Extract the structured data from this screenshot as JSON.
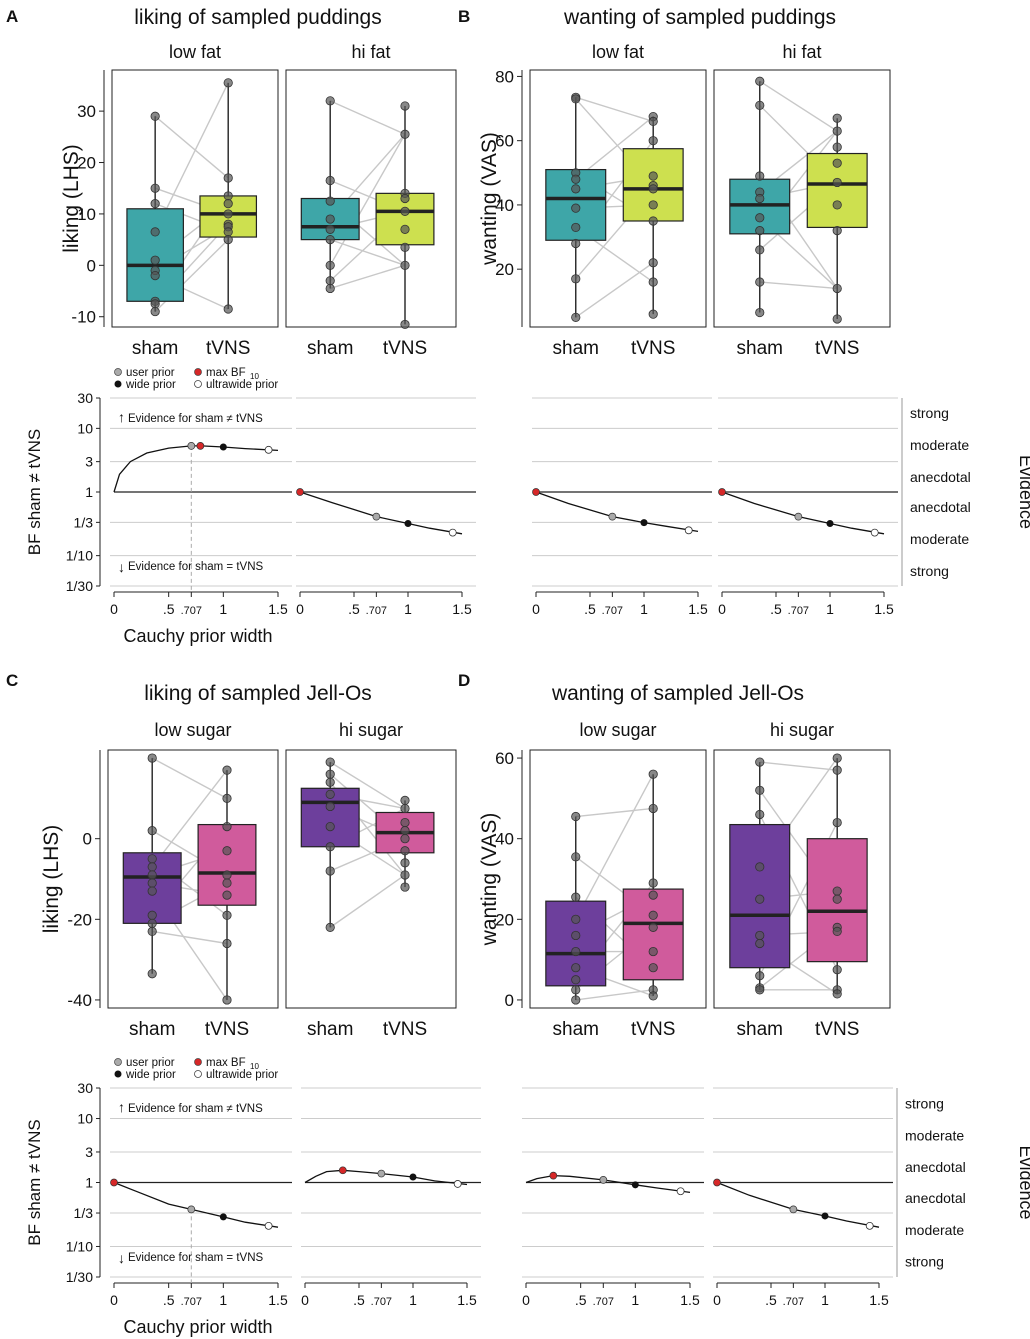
{
  "colors": {
    "teal": "#3ea6a8",
    "lime": "#cde04f",
    "purple": "#6d3f9c",
    "pink": "#d05b9c",
    "grid": "#cccccc",
    "point": "#555555",
    "max_bf": "#d62728"
  },
  "labels": {
    "sham": "sham",
    "tvns": "tVNS",
    "bf_ylabel": "BF sham ≠ tVNS",
    "evidence": "Evidence",
    "x_title": "Cauchy prior width",
    "legend_user": "user prior",
    "legend_wide": "wide prior",
    "legend_max": "max BF",
    "legend_max_sub": "10",
    "legend_ultrawide": "ultrawide prior",
    "ev_for_diff": "Evidence for sham ≠ tVNS",
    "ev_for_eq": "Evidence for sham = tVNS",
    "evidence_levels": [
      "strong",
      "moderate",
      "anecdotal",
      "anecdotal",
      "moderate",
      "strong"
    ],
    "bf_ticks": [
      "30",
      "10",
      "3",
      "1",
      "1/3",
      "1/10",
      "1/30"
    ],
    "x_ticks": [
      "0",
      ".5",
      ".707",
      "1",
      "1.5"
    ]
  },
  "chart_data": [
    {
      "panel": "A",
      "type": "boxplot",
      "title": "liking of sampled puddings",
      "ylabel": "liking (LHS)",
      "ylim": [
        -12,
        38
      ],
      "yticks": [
        -10,
        0,
        10,
        20,
        30
      ],
      "colors": [
        "teal",
        "lime"
      ],
      "facets": [
        {
          "name": "low fat",
          "boxes": [
            {
              "condition": "sham",
              "q1": -7,
              "median": 0,
              "q3": 11,
              "whisker_low": -9,
              "whisker_high": 29,
              "points": [
                29,
                15,
                12,
                6.5,
                1,
                -1,
                -2,
                -7,
                -7.5,
                -9
              ]
            },
            {
              "condition": "tVNS",
              "q1": 5.5,
              "median": 10,
              "q3": 13.5,
              "whisker_low": -8.5,
              "whisker_high": 35.5,
              "points": [
                35.5,
                17,
                13.5,
                12,
                10,
                8,
                7.5,
                6.5,
                5,
                -8.5
              ]
            }
          ]
        },
        {
          "name": "hi fat",
          "boxes": [
            {
              "condition": "sham",
              "q1": 5,
              "median": 7.5,
              "q3": 13,
              "whisker_low": -4.5,
              "whisker_high": 32,
              "points": [
                32,
                16.5,
                12.5,
                9,
                7,
                5,
                0,
                -3,
                -4.5
              ]
            },
            {
              "condition": "tVNS",
              "q1": 4,
              "median": 10.5,
              "q3": 14,
              "whisker_low": -11.5,
              "whisker_high": 31,
              "points": [
                31,
                25.5,
                14,
                13,
                10.5,
                7,
                3.5,
                0,
                -11.5
              ]
            }
          ]
        }
      ]
    },
    {
      "panel": "B",
      "type": "boxplot",
      "title": "wanting of sampled puddings",
      "ylabel": "wanting (VAS)",
      "ylim": [
        2,
        82
      ],
      "yticks": [
        20,
        40,
        60,
        80
      ],
      "colors": [
        "teal",
        "lime"
      ],
      "facets": [
        {
          "name": "low fat",
          "boxes": [
            {
              "condition": "sham",
              "q1": 29,
              "median": 42,
              "q3": 51,
              "whisker_low": 5,
              "whisker_high": 73.5,
              "points": [
                73.5,
                73,
                50,
                48,
                45,
                39,
                33,
                28,
                17,
                5
              ]
            },
            {
              "condition": "tVNS",
              "q1": 35,
              "median": 45,
              "q3": 57.5,
              "whisker_low": 6,
              "whisker_high": 67.5,
              "points": [
                67.5,
                66,
                60,
                49,
                46,
                45,
                40,
                35,
                22,
                16,
                6
              ]
            }
          ]
        },
        {
          "name": "hi fat",
          "boxes": [
            {
              "condition": "sham",
              "q1": 31,
              "median": 40,
              "q3": 48,
              "whisker_low": 6.5,
              "whisker_high": 78.5,
              "points": [
                78.5,
                71,
                49,
                44,
                42,
                36,
                32,
                26,
                16,
                6.5
              ]
            },
            {
              "condition": "tVNS",
              "q1": 33,
              "median": 46.5,
              "q3": 56,
              "whisker_low": 4.5,
              "whisker_high": 67,
              "points": [
                67,
                63,
                58,
                53,
                47,
                40,
                32,
                14,
                4.5
              ]
            }
          ]
        }
      ]
    },
    {
      "panel": "C",
      "type": "boxplot",
      "title": "liking of sampled Jell-Os",
      "ylabel": "liking (LHS)",
      "ylim": [
        -42,
        22
      ],
      "yticks": [
        -40,
        -20,
        0
      ],
      "ytick_labels": [
        "-40",
        "-20",
        "0"
      ],
      "colors": [
        "purple",
        "pink"
      ],
      "facets": [
        {
          "name": "low sugar",
          "boxes": [
            {
              "condition": "sham",
              "q1": -21,
              "median": -9.5,
              "q3": -3.5,
              "whisker_low": -33.5,
              "whisker_high": 20,
              "points": [
                20,
                2,
                -5,
                -7,
                -9,
                -11,
                -13,
                -19,
                -21,
                -23,
                -33.5
              ]
            },
            {
              "condition": "tVNS",
              "q1": -16.5,
              "median": -8.5,
              "q3": 3.5,
              "whisker_low": -40,
              "whisker_high": 17,
              "points": [
                17,
                10,
                3,
                -3,
                -9,
                -11,
                -14,
                -19,
                -26,
                -40
              ]
            }
          ]
        },
        {
          "name": "hi sugar",
          "boxes": [
            {
              "condition": "sham",
              "q1": -2,
              "median": 9,
              "q3": 12.5,
              "whisker_low": -22,
              "whisker_high": 19,
              "points": [
                19,
                16,
                14,
                11,
                8,
                3,
                -2,
                -8,
                -22
              ]
            },
            {
              "condition": "tVNS",
              "q1": -3.5,
              "median": 1.5,
              "q3": 6.5,
              "whisker_low": -12,
              "whisker_high": 9.5,
              "points": [
                9.5,
                7.5,
                4,
                2,
                0,
                -3,
                -6,
                -9,
                -12
              ]
            }
          ]
        }
      ]
    },
    {
      "panel": "D",
      "type": "boxplot",
      "title": "wanting of sampled Jell-Os",
      "ylabel": "wanting (VAS)",
      "ylim": [
        -2,
        62
      ],
      "yticks": [
        0,
        20,
        40,
        60
      ],
      "colors": [
        "purple",
        "pink"
      ],
      "facets": [
        {
          "name": "low sugar",
          "boxes": [
            {
              "condition": "sham",
              "q1": 3.5,
              "median": 11.5,
              "q3": 24.5,
              "whisker_low": 0,
              "whisker_high": 45.5,
              "points": [
                45.5,
                35.5,
                25.5,
                20,
                16,
                12,
                8,
                5,
                2.5,
                0
              ]
            },
            {
              "condition": "tVNS",
              "q1": 5,
              "median": 19,
              "q3": 27.5,
              "whisker_low": 1,
              "whisker_high": 56,
              "points": [
                56,
                47.5,
                29,
                26,
                21,
                18,
                12,
                8,
                2.5,
                1
              ]
            }
          ]
        },
        {
          "name": "hi sugar",
          "boxes": [
            {
              "condition": "sham",
              "q1": 8,
              "median": 21,
              "q3": 43.5,
              "whisker_low": 2.5,
              "whisker_high": 59,
              "points": [
                59,
                52,
                46,
                33,
                25,
                16,
                14,
                6,
                3,
                2.5
              ]
            },
            {
              "condition": "tVNS",
              "q1": 9.5,
              "median": 22,
              "q3": 40,
              "whisker_low": 1.5,
              "whisker_high": 60,
              "points": [
                60,
                57,
                44,
                27,
                25,
                18,
                17,
                7.5,
                2.5,
                1.5
              ]
            }
          ]
        }
      ]
    },
    {
      "panel": "A",
      "type": "line",
      "subtype": "bf_robustness",
      "xlabel": "Cauchy prior width",
      "ylabel": "BF sham ≠ tVNS",
      "xlim": [
        0,
        1.5
      ],
      "ylim_log3": [
        -3,
        3
      ],
      "facets": [
        {
          "name": "low fat",
          "curve": [
            [
              0,
              1
            ],
            [
              0.05,
              1.9
            ],
            [
              0.15,
              3.0
            ],
            [
              0.3,
              4.1
            ],
            [
              0.5,
              4.9
            ],
            [
              0.707,
              5.3
            ],
            [
              0.8,
              5.3
            ],
            [
              1,
              5.1
            ],
            [
              1.2,
              4.8
            ],
            [
              1.5,
              4.5
            ]
          ],
          "user": [
            0.707,
            5.3
          ],
          "wide": [
            1,
            5.1
          ],
          "ultrawide": [
            1.414,
            4.6
          ],
          "max": [
            0.79,
            5.3
          ]
        },
        {
          "name": "hi fat",
          "curve": [
            [
              0,
              1
            ],
            [
              0.3,
              0.68
            ],
            [
              0.707,
              0.41
            ],
            [
              1,
              0.32
            ],
            [
              1.2,
              0.27
            ],
            [
              1.5,
              0.22
            ]
          ],
          "user": [
            0.707,
            0.41
          ],
          "wide": [
            1,
            0.32
          ],
          "ultrawide": [
            1.414,
            0.23
          ],
          "max": [
            0,
            1
          ]
        }
      ]
    },
    {
      "panel": "B",
      "type": "line",
      "subtype": "bf_robustness",
      "xlabel": "Cauchy prior width",
      "ylabel": "BF sham ≠ tVNS",
      "xlim": [
        0,
        1.5
      ],
      "ylim_log3": [
        -3,
        3
      ],
      "facets": [
        {
          "name": "low fat",
          "curve": [
            [
              0,
              1
            ],
            [
              0.3,
              0.66
            ],
            [
              0.707,
              0.41
            ],
            [
              1,
              0.33
            ],
            [
              1.2,
              0.29
            ],
            [
              1.5,
              0.24
            ]
          ],
          "user": [
            0.707,
            0.41
          ],
          "wide": [
            1,
            0.33
          ],
          "ultrawide": [
            1.414,
            0.25
          ],
          "max": [
            0,
            1
          ]
        },
        {
          "name": "hi fat",
          "curve": [
            [
              0,
              1
            ],
            [
              0.3,
              0.66
            ],
            [
              0.707,
              0.41
            ],
            [
              1,
              0.32
            ],
            [
              1.2,
              0.27
            ],
            [
              1.5,
              0.22
            ]
          ],
          "user": [
            0.707,
            0.41
          ],
          "wide": [
            1,
            0.32
          ],
          "ultrawide": [
            1.414,
            0.23
          ],
          "max": [
            0,
            1
          ]
        }
      ]
    },
    {
      "panel": "C",
      "type": "line",
      "subtype": "bf_robustness",
      "xlabel": "Cauchy prior width",
      "ylabel": "BF sham ≠ tVNS",
      "xlim": [
        0,
        1.5
      ],
      "ylim_log3": [
        -3,
        3
      ],
      "facets": [
        {
          "name": "low sugar",
          "curve": [
            [
              0,
              1
            ],
            [
              0.2,
              0.73
            ],
            [
              0.5,
              0.46
            ],
            [
              0.707,
              0.38
            ],
            [
              1,
              0.29
            ],
            [
              1.2,
              0.24
            ],
            [
              1.5,
              0.2
            ]
          ],
          "user": [
            0.707,
            0.38
          ],
          "wide": [
            1,
            0.29
          ],
          "ultrawide": [
            1.414,
            0.21
          ],
          "max": [
            0,
            1
          ]
        },
        {
          "name": "hi sugar",
          "curve": [
            [
              0,
              1
            ],
            [
              0.1,
              1.25
            ],
            [
              0.2,
              1.48
            ],
            [
              0.35,
              1.55
            ],
            [
              0.5,
              1.48
            ],
            [
              0.707,
              1.38
            ],
            [
              1,
              1.22
            ],
            [
              1.2,
              1.06
            ],
            [
              1.5,
              0.93
            ]
          ],
          "user": [
            0.707,
            1.38
          ],
          "wide": [
            1,
            1.22
          ],
          "ultrawide": [
            1.414,
            0.95
          ],
          "max": [
            0.35,
            1.55
          ]
        }
      ]
    },
    {
      "panel": "D",
      "type": "line",
      "subtype": "bf_robustness",
      "xlabel": "Cauchy prior width",
      "ylabel": "BF sham ≠ tVNS",
      "xlim": [
        0,
        1.5
      ],
      "ylim_log3": [
        -3,
        3
      ],
      "facets": [
        {
          "name": "low sugar",
          "curve": [
            [
              0,
              1
            ],
            [
              0.1,
              1.15
            ],
            [
              0.25,
              1.28
            ],
            [
              0.4,
              1.25
            ],
            [
              0.707,
              1.1
            ],
            [
              1,
              0.92
            ],
            [
              1.2,
              0.82
            ],
            [
              1.5,
              0.7
            ]
          ],
          "user": [
            0.707,
            1.1
          ],
          "wide": [
            1,
            0.92
          ],
          "ultrawide": [
            1.414,
            0.73
          ],
          "max": [
            0.25,
            1.28
          ]
        },
        {
          "name": "hi sugar",
          "curve": [
            [
              0,
              1
            ],
            [
              0.3,
              0.63
            ],
            [
              0.707,
              0.38
            ],
            [
              1,
              0.3
            ],
            [
              1.2,
              0.25
            ],
            [
              1.5,
              0.2
            ]
          ],
          "user": [
            0.707,
            0.38
          ],
          "wide": [
            1,
            0.3
          ],
          "ultrawide": [
            1.414,
            0.21
          ],
          "max": [
            0,
            1
          ]
        }
      ]
    }
  ]
}
